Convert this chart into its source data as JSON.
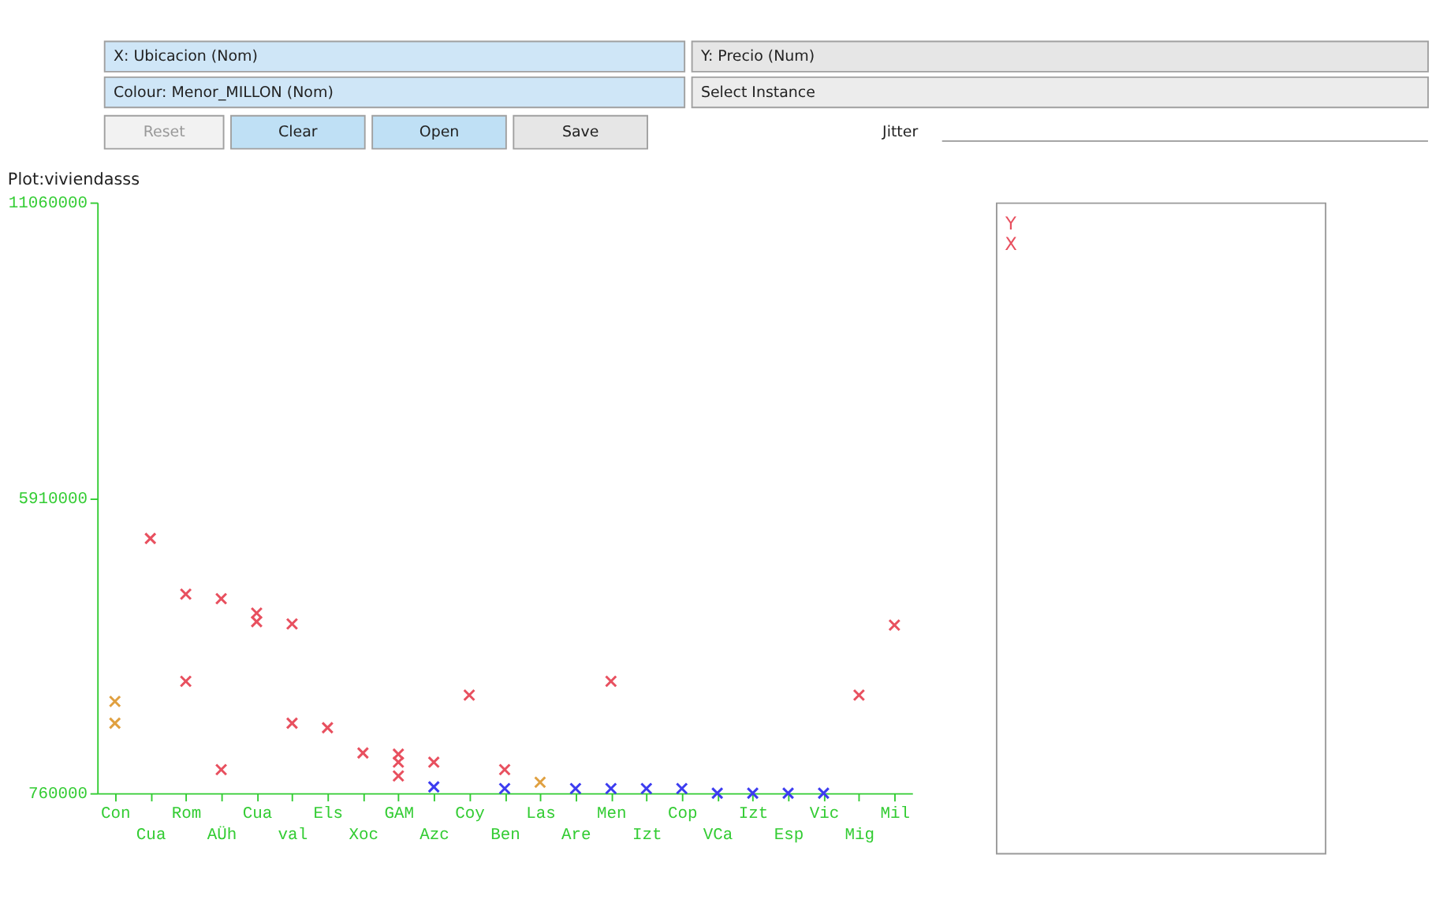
{
  "chart_data": {
    "type": "scatter",
    "title": "Plot:viviendasss",
    "categories": [
      "Con",
      "Cua",
      "Rom",
      "AÜh",
      "Cua",
      "val",
      "Els",
      "Xoc",
      "GAM",
      "Azc",
      "Coy",
      "Ben",
      "Las",
      "Are",
      "Men",
      "Izt",
      "Cop",
      "VCa",
      "Izt",
      "Esp",
      "Vic",
      "Mig",
      "Mil"
    ],
    "series": [
      {
        "color": "#e8505f",
        "values": [
          null,
          5200000,
          4230000,
          4150000,
          3900000,
          3710000,
          1900000,
          1460000,
          1440000,
          1300000,
          2470000,
          1170000,
          null,
          null,
          2710000,
          null,
          null,
          null,
          null,
          null,
          null,
          2470000,
          3690000
        ]
      },
      {
        "color": "#e8505f",
        "values": [
          null,
          null,
          2710000,
          1170000,
          3750000,
          1980000,
          null,
          null,
          1300000,
          null,
          null,
          null,
          null,
          null,
          null,
          null,
          null,
          null,
          null,
          null,
          null,
          null,
          null
        ]
      },
      {
        "color": "#e8505f",
        "values": [
          null,
          null,
          null,
          null,
          null,
          null,
          null,
          null,
          1060000,
          null,
          null,
          null,
          null,
          null,
          null,
          null,
          null,
          null,
          null,
          null,
          null,
          null,
          null
        ]
      },
      {
        "color": "#3c3cf0",
        "values": [
          null,
          null,
          null,
          null,
          null,
          null,
          null,
          null,
          null,
          870000,
          null,
          840000,
          null,
          840000,
          840000,
          840000,
          840000,
          760000,
          760000,
          760000,
          760000,
          null,
          null
        ]
      },
      {
        "color": "#e0a040",
        "values": [
          2360000,
          null,
          null,
          null,
          null,
          null,
          null,
          null,
          null,
          null,
          null,
          null,
          950000,
          null,
          null,
          null,
          null,
          null,
          null,
          null,
          null,
          null,
          null
        ]
      },
      {
        "color": "#e0a040",
        "values": [
          1980000,
          null,
          null,
          null,
          null,
          null,
          null,
          null,
          null,
          null,
          null,
          null,
          null,
          null,
          null,
          null,
          null,
          null,
          null,
          null,
          null,
          null,
          null
        ]
      }
    ],
    "ylim": [
      760000,
      11060000
    ],
    "yticks": [
      760000,
      5910000,
      11060000
    ],
    "grid": false,
    "marker": "cross",
    "annotations": [
      "X: Ubicacion (Nom)",
      "Y: Precio (Num)",
      "Colour: Menor_MILLON (Nom)",
      "Select Instance",
      "Reset",
      "Clear",
      "Open",
      "Save",
      "Jitter",
      "Y",
      "X"
    ]
  }
}
